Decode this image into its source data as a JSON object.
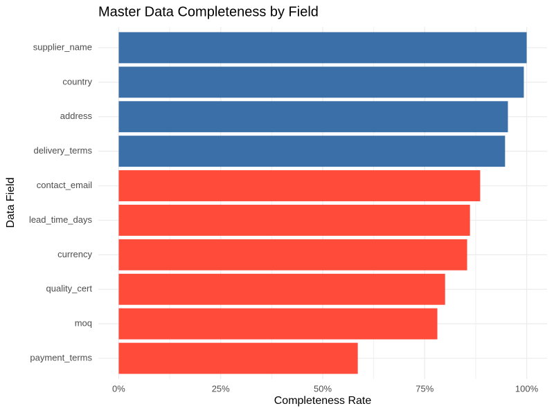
{
  "chart_data": {
    "type": "bar",
    "orientation": "horizontal",
    "title": "Master Data Completeness by Field",
    "x_label": "Completeness Rate",
    "y_label": "Data Field",
    "categories": [
      "supplier_name",
      "country",
      "address",
      "delivery_terms",
      "contact_email",
      "lead_time_days",
      "currency",
      "quality_cert",
      "moq",
      "payment_terms"
    ],
    "values": [
      100,
      99.3,
      95.4,
      94.7,
      88.6,
      86.1,
      85.4,
      80,
      78.1,
      58.6
    ],
    "colors": [
      "#3a6fa8",
      "#3a6fa8",
      "#3a6fa8",
      "#3a6fa8",
      "#fe4b3a",
      "#fe4b3a",
      "#fe4b3a",
      "#fe4b3a",
      "#fe4b3a",
      "#fe4b3a"
    ],
    "xlim": [
      -5,
      105
    ],
    "xticks": [
      {
        "value": 0,
        "label": "0%"
      },
      {
        "value": 25,
        "label": "25%"
      },
      {
        "value": 50,
        "label": "50%"
      },
      {
        "value": 75,
        "label": "75%"
      },
      {
        "value": 100,
        "label": "100%"
      }
    ],
    "x_minor_ticks": [
      12.5,
      37.5,
      62.5,
      87.5
    ],
    "grid": true
  }
}
